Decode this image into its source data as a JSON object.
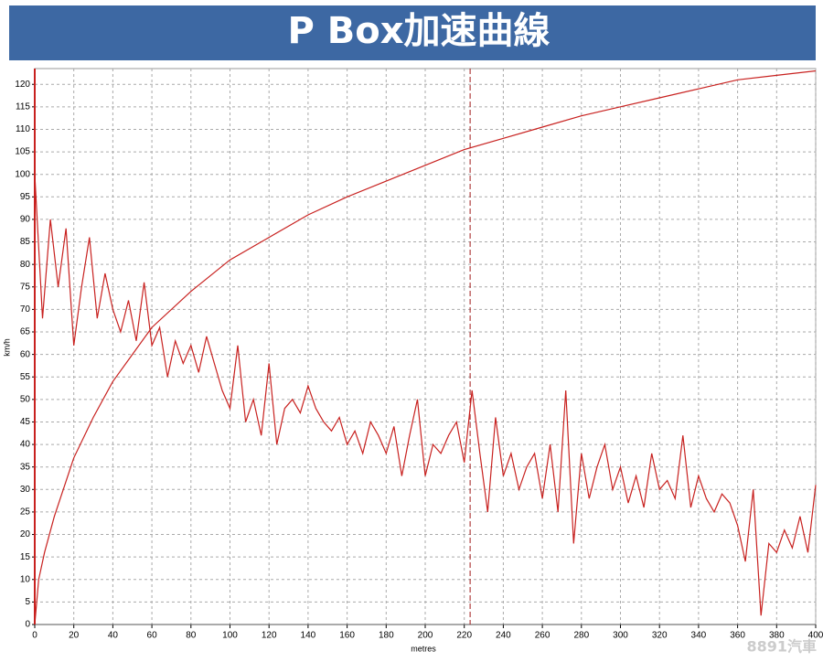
{
  "chart_data": {
    "type": "line",
    "title": "P Box加速曲線",
    "y_label": "km/h",
    "x_label": "metres",
    "watermark": "8891汽車",
    "xlim": [
      0,
      400
    ],
    "ylim": [
      0,
      123.5
    ],
    "xticks": [
      0,
      20,
      40,
      60,
      80,
      100,
      120,
      140,
      160,
      180,
      200,
      220,
      240,
      260,
      280,
      300,
      320,
      340,
      360,
      380,
      400
    ],
    "yticks": [
      0,
      5,
      10,
      15,
      20,
      25,
      30,
      35,
      40,
      45,
      50,
      55,
      60,
      65,
      70,
      75,
      80,
      85,
      90,
      95,
      100,
      105,
      110,
      115,
      120
    ],
    "grid": true,
    "marker_x": 223,
    "series": [
      {
        "color": "#c8211f",
        "x": [
          0,
          2,
          5,
          10,
          20,
          30,
          40,
          50,
          60,
          80,
          100,
          120,
          140,
          160,
          180,
          200,
          220,
          240,
          260,
          280,
          300,
          320,
          340,
          360,
          380,
          400
        ],
        "values": [
          0,
          10,
          16,
          24,
          37,
          46,
          54,
          60,
          66,
          74,
          81,
          86,
          91,
          95,
          98.5,
          102,
          105.5,
          108,
          110.5,
          113,
          115,
          117,
          119,
          121,
          122,
          123
        ]
      },
      {
        "color": "#c8211f",
        "x": [
          0,
          4,
          8,
          12,
          16,
          20,
          24,
          28,
          32,
          36,
          40,
          44,
          48,
          52,
          56,
          60,
          64,
          68,
          72,
          76,
          80,
          84,
          88,
          92,
          96,
          100,
          104,
          108,
          112,
          116,
          120,
          124,
          128,
          132,
          136,
          140,
          144,
          148,
          152,
          156,
          160,
          164,
          168,
          172,
          176,
          180,
          184,
          188,
          192,
          196,
          200,
          204,
          208,
          212,
          216,
          220,
          224,
          228,
          232,
          236,
          240,
          244,
          248,
          252,
          256,
          260,
          264,
          268,
          272,
          276,
          280,
          284,
          288,
          292,
          296,
          300,
          304,
          308,
          312,
          316,
          320,
          324,
          328,
          332,
          336,
          340,
          344,
          348,
          352,
          356,
          360,
          364,
          368,
          372,
          376,
          380,
          384,
          388,
          392,
          396,
          400
        ],
        "values": [
          100,
          68,
          90,
          75,
          88,
          62,
          75,
          86,
          68,
          78,
          70,
          65,
          72,
          63,
          76,
          62,
          66,
          55,
          63,
          58,
          62,
          56,
          64,
          58,
          52,
          48,
          62,
          45,
          50,
          42,
          58,
          40,
          48,
          50,
          47,
          53,
          48,
          45,
          43,
          46,
          40,
          43,
          38,
          45,
          42,
          38,
          44,
          33,
          42,
          50,
          33,
          40,
          38,
          42,
          45,
          36,
          52,
          38,
          25,
          46,
          33,
          38,
          30,
          35,
          38,
          28,
          40,
          25,
          52,
          18,
          38,
          28,
          35,
          40,
          30,
          35,
          27,
          33,
          26,
          38,
          30,
          32,
          28,
          42,
          26,
          33,
          28,
          25,
          29,
          27,
          22,
          14,
          30,
          2,
          18,
          16,
          21,
          17,
          24,
          16,
          31
        ]
      }
    ]
  }
}
